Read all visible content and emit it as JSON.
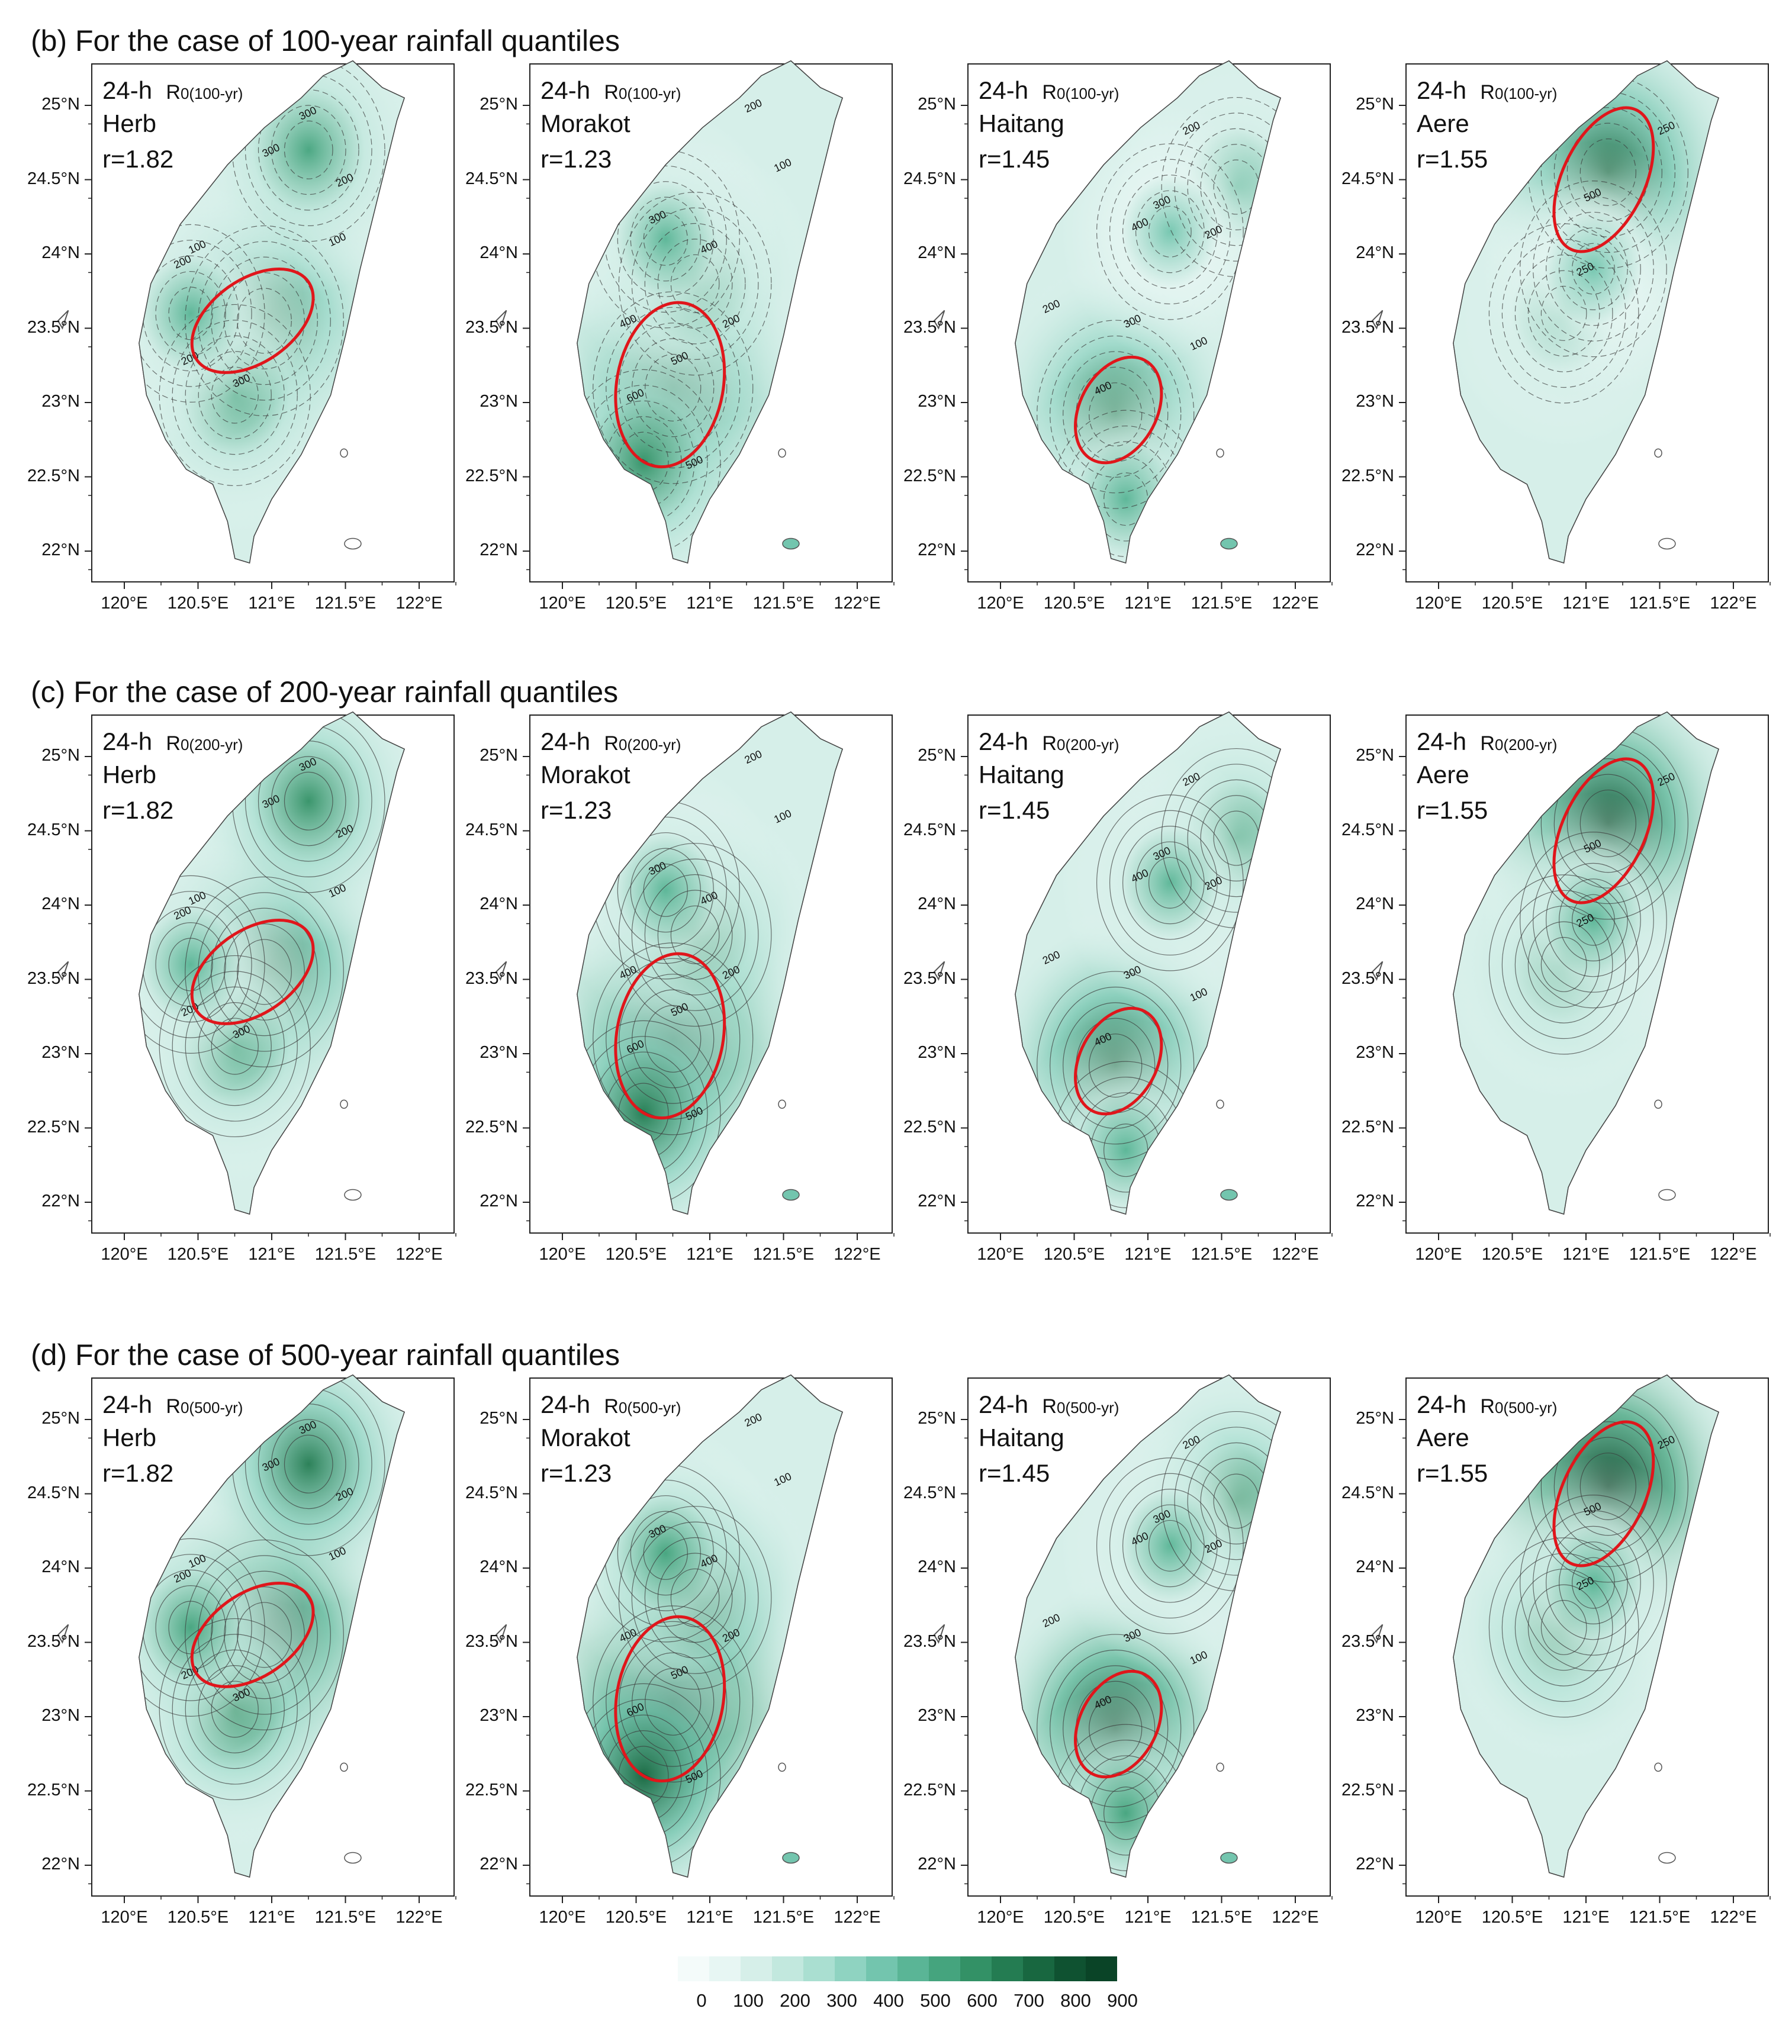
{
  "rows": [
    {
      "title": "(b) For the case of 100-year rainfall quantiles",
      "quantile_sub": "0(100-yr)"
    },
    {
      "title": "(c) For the case of 200-year rainfall quantiles",
      "quantile_sub": "0(200-yr)"
    },
    {
      "title": "(d) For the case of 500-year rainfall quantiles",
      "quantile_sub": "0(500-yr)"
    }
  ],
  "storms": [
    {
      "name": "Herb",
      "r": "r=1.82"
    },
    {
      "name": "Morakot",
      "r": "r=1.23"
    },
    {
      "name": "Haitang",
      "r": "r=1.45"
    },
    {
      "name": "Aere",
      "r": "r=1.55"
    }
  ],
  "duration_label": "24-h",
  "r_symbol": "R",
  "lat_ticks": [
    "25°N",
    "24.5°N",
    "24°N",
    "23.5°N",
    "23°N",
    "22.5°N",
    "22°N"
  ],
  "lon_ticks": [
    "120°E",
    "120.5°E",
    "121°E",
    "121.5°E",
    "122°E"
  ],
  "contour_labels": [
    [
      "300",
      "300",
      "200",
      "100",
      "200",
      "100",
      "200",
      "300"
    ],
    [
      "200",
      "100",
      "300",
      "400",
      "400",
      "500",
      "600",
      "200",
      "500"
    ],
    [
      "200",
      "300",
      "400",
      "200",
      "300",
      "100",
      "400",
      "200"
    ],
    [
      "250",
      "500",
      "250"
    ]
  ],
  "colorbar": {
    "colors": [
      "#f4fbfa",
      "#e7f6f3",
      "#d6efe9",
      "#c2e8de",
      "#aadfd1",
      "#8fd3c1",
      "#73c5ae",
      "#5ab596",
      "#45a47e",
      "#339166",
      "#247c52",
      "#186740",
      "#0f5231",
      "#0a4427"
    ],
    "tick_labels": [
      "0",
      "100",
      "200",
      "300",
      "400",
      "500",
      "600",
      "700",
      "800",
      "900"
    ]
  }
}
